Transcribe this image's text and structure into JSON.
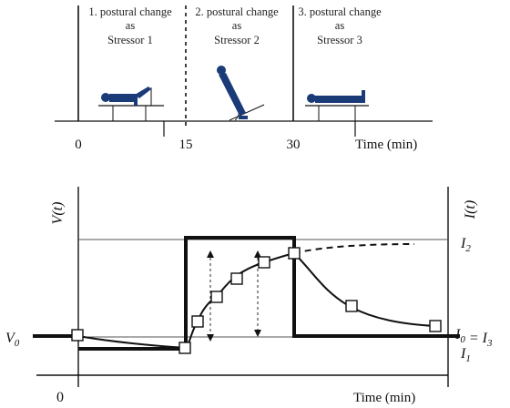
{
  "colors": {
    "ink": "#111111",
    "figure": "#1a3a78",
    "grid": "#555555"
  },
  "top_panel": {
    "stages": [
      {
        "line1": "1. postural change",
        "line2": "as",
        "line3": "Stressor 1",
        "icon": "seated-figure-icon"
      },
      {
        "line1": "2. postural change",
        "line2": "as",
        "line3": "Stressor 2",
        "icon": "tilted-figure-icon"
      },
      {
        "line1": "3. postural change",
        "line2": "as",
        "line3": "Stressor 3",
        "icon": "supine-figure-icon"
      }
    ],
    "ticks": [
      "0",
      "15",
      "30"
    ],
    "axis_label": "Time (min)"
  },
  "bottom_panel": {
    "left_axis_label": "V(t)",
    "right_axis_label": "I(t)",
    "v0_label": "V0",
    "i2_label": "I2",
    "i0_i3_label": "I0 = I3",
    "i1_label": "I1",
    "zero_label": "0",
    "axis_label": "Time (min)"
  },
  "chart_data": {
    "type": "line",
    "x_segments": [
      "0-15",
      "15-30",
      "30-end"
    ],
    "series": [
      {
        "name": "I(t)",
        "values": [
          {
            "segment": "0-15",
            "level": "I1"
          },
          {
            "segment": "15-30",
            "level": "I2"
          },
          {
            "segment": "30-end",
            "level": "I0 = I3"
          }
        ]
      },
      {
        "name": "V(t)",
        "style": "line with square markers",
        "start_level": "V0"
      }
    ]
  }
}
